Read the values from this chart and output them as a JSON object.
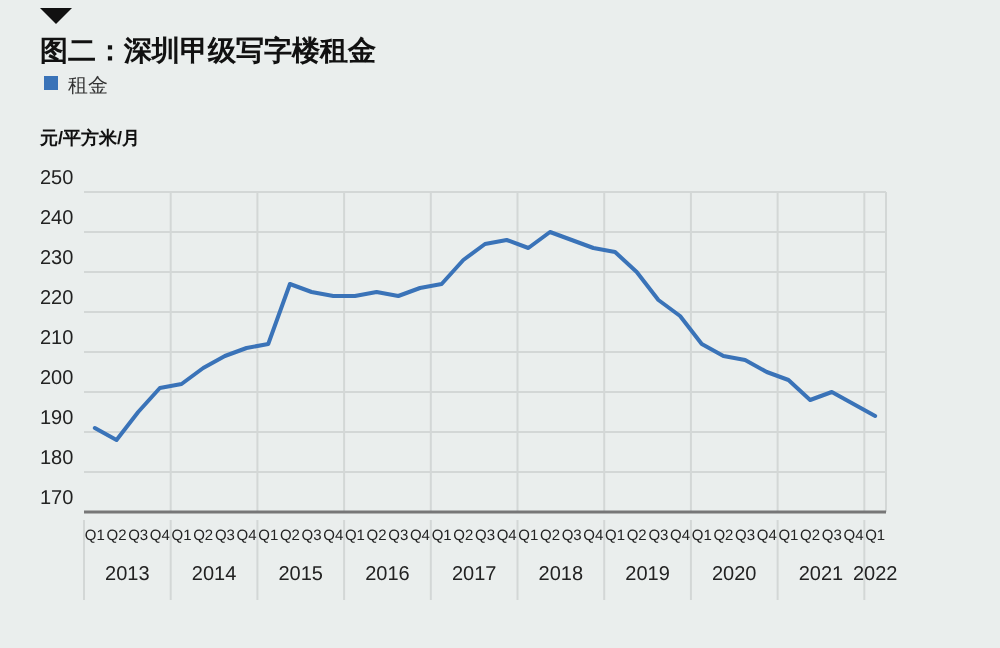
{
  "chart_data": {
    "type": "line",
    "title": "图二：深圳甲级写字楼租金",
    "ylabel": "元/平方米/月",
    "categories": [
      "Q1",
      "Q2",
      "Q3",
      "Q4",
      "Q1",
      "Q2",
      "Q3",
      "Q4",
      "Q1",
      "Q2",
      "Q3",
      "Q4",
      "Q1",
      "Q2",
      "Q3",
      "Q4",
      "Q1",
      "Q2",
      "Q3",
      "Q4",
      "Q1",
      "Q2",
      "Q3",
      "Q4",
      "Q1",
      "Q2",
      "Q3",
      "Q4",
      "Q1",
      "Q2",
      "Q3",
      "Q4",
      "Q1",
      "Q2",
      "Q3",
      "Q4",
      "Q1"
    ],
    "annotations": [
      "2013",
      "2014",
      "2015",
      "2016",
      "2017",
      "2018",
      "2019",
      "2020",
      "2021",
      "2022"
    ],
    "series": [
      {
        "name": "租金",
        "color": "#3a73b8",
        "values": [
          191,
          188,
          195,
          201,
          202,
          206,
          209,
          211,
          212,
          227,
          225,
          224,
          224,
          225,
          224,
          226,
          227,
          233,
          237,
          238,
          236,
          240,
          238,
          236,
          235,
          230,
          223,
          219,
          212,
          209,
          208,
          205,
          203,
          198,
          200,
          197,
          194
        ]
      }
    ],
    "ylim": [
      170,
      250
    ],
    "yticks": [
      170,
      180,
      190,
      200,
      210,
      220,
      230,
      240,
      250
    ],
    "grid": true,
    "legend": "top left"
  }
}
